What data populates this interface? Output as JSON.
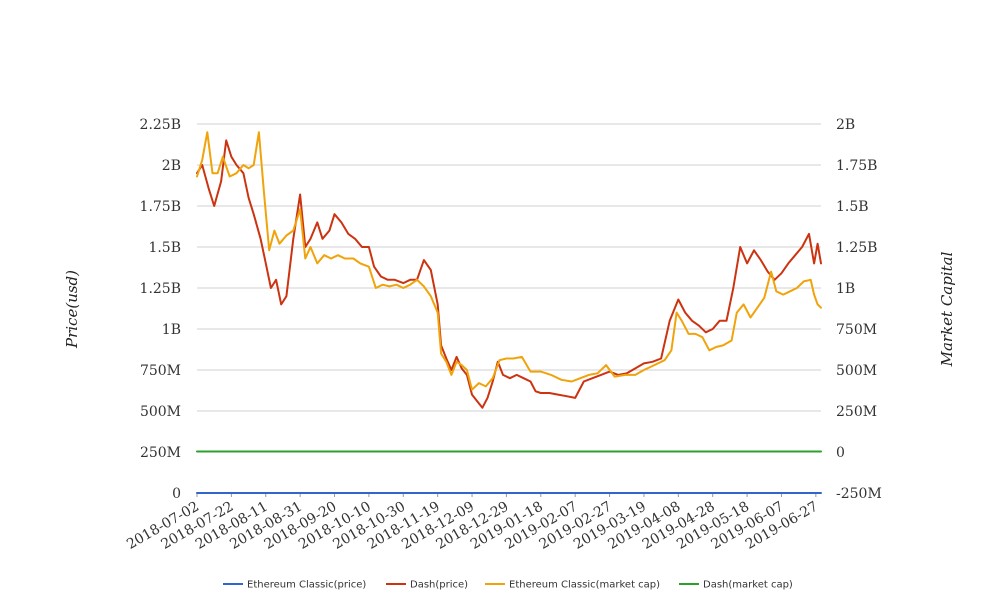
{
  "chart_data": {
    "type": "line",
    "title": "",
    "ylabel_left": "Price(usd)",
    "ylabel_right": "Market Capital",
    "grid": true,
    "legend_position": "bottom",
    "x_ticks": [
      "2018-07-02",
      "2018-07-22",
      "2018-08-11",
      "2018-08-31",
      "2018-09-20",
      "2018-10-10",
      "2018-10-30",
      "2018-11-19",
      "2018-12-09",
      "2018-12-29",
      "2019-01-18",
      "2019-02-07",
      "2019-02-27",
      "2019-03-19",
      "2019-04-08",
      "2019-04-28",
      "2019-05-18",
      "2019-06-07",
      "2019-06-27"
    ],
    "y_left": {
      "range": [
        0,
        2250000000
      ],
      "ticks": [
        0,
        250000000,
        500000000,
        750000000,
        1000000000,
        1250000000,
        1500000000,
        1750000000,
        2000000000,
        2250000000
      ],
      "tick_labels": [
        "0",
        "250M",
        "500M",
        "750M",
        "1B",
        "1.25B",
        "1.5B",
        "1.75B",
        "2B",
        "2.25B"
      ]
    },
    "y_right": {
      "range": [
        -250000000,
        2000000000
      ],
      "ticks": [
        -250000000,
        0,
        250000000,
        500000000,
        750000000,
        1000000000,
        1250000000,
        1500000000,
        1750000000,
        2000000000
      ],
      "tick_labels": [
        "-250M",
        "0",
        "250M",
        "500M",
        "750M",
        "1B",
        "1.25B",
        "1.5B",
        "1.75B",
        "2B"
      ]
    },
    "series": [
      {
        "name": "Ethereum Classic(price)",
        "axis": "left",
        "color": "#3366cc",
        "points": [
          [
            "2018-07-02",
            12
          ],
          [
            "2019-06-30",
            8
          ]
        ]
      },
      {
        "name": "Dash(price)",
        "axis": "left",
        "color": "#cc3311",
        "points": [
          [
            "2018-07-02",
            1950000000
          ],
          [
            "2018-07-05",
            2000000000
          ],
          [
            "2018-07-09",
            1850000000
          ],
          [
            "2018-07-12",
            1750000000
          ],
          [
            "2018-07-16",
            1900000000
          ],
          [
            "2018-07-19",
            2150000000
          ],
          [
            "2018-07-22",
            2050000000
          ],
          [
            "2018-07-25",
            2000000000
          ],
          [
            "2018-07-29",
            1950000000
          ],
          [
            "2018-08-01",
            1800000000
          ],
          [
            "2018-08-04",
            1700000000
          ],
          [
            "2018-08-08",
            1550000000
          ],
          [
            "2018-08-11",
            1400000000
          ],
          [
            "2018-08-14",
            1250000000
          ],
          [
            "2018-08-17",
            1300000000
          ],
          [
            "2018-08-20",
            1150000000
          ],
          [
            "2018-08-23",
            1200000000
          ],
          [
            "2018-08-27",
            1550000000
          ],
          [
            "2018-08-31",
            1820000000
          ],
          [
            "2018-09-03",
            1500000000
          ],
          [
            "2018-09-06",
            1550000000
          ],
          [
            "2018-09-10",
            1650000000
          ],
          [
            "2018-09-13",
            1550000000
          ],
          [
            "2018-09-17",
            1600000000
          ],
          [
            "2018-09-20",
            1700000000
          ],
          [
            "2018-09-24",
            1650000000
          ],
          [
            "2018-09-28",
            1580000000
          ],
          [
            "2018-10-02",
            1550000000
          ],
          [
            "2018-10-06",
            1500000000
          ],
          [
            "2018-10-10",
            1500000000
          ],
          [
            "2018-10-13",
            1380000000
          ],
          [
            "2018-10-17",
            1320000000
          ],
          [
            "2018-10-21",
            1300000000
          ],
          [
            "2018-10-25",
            1300000000
          ],
          [
            "2018-10-30",
            1280000000
          ],
          [
            "2018-11-03",
            1300000000
          ],
          [
            "2018-11-07",
            1300000000
          ],
          [
            "2018-11-11",
            1420000000
          ],
          [
            "2018-11-15",
            1360000000
          ],
          [
            "2018-11-19",
            1150000000
          ],
          [
            "2018-11-21",
            900000000
          ],
          [
            "2018-11-24",
            820000000
          ],
          [
            "2018-11-27",
            750000000
          ],
          [
            "2018-11-30",
            830000000
          ],
          [
            "2018-12-03",
            760000000
          ],
          [
            "2018-12-06",
            720000000
          ],
          [
            "2018-12-09",
            600000000
          ],
          [
            "2018-12-12",
            560000000
          ],
          [
            "2018-12-15",
            520000000
          ],
          [
            "2018-12-18",
            580000000
          ],
          [
            "2018-12-21",
            680000000
          ],
          [
            "2018-12-24",
            800000000
          ],
          [
            "2018-12-27",
            720000000
          ],
          [
            "2018-12-31",
            700000000
          ],
          [
            "2019-01-04",
            720000000
          ],
          [
            "2019-01-08",
            700000000
          ],
          [
            "2019-01-12",
            680000000
          ],
          [
            "2019-01-15",
            620000000
          ],
          [
            "2019-01-18",
            610000000
          ],
          [
            "2019-01-23",
            610000000
          ],
          [
            "2019-01-28",
            600000000
          ],
          [
            "2019-02-02",
            590000000
          ],
          [
            "2019-02-07",
            580000000
          ],
          [
            "2019-02-12",
            680000000
          ],
          [
            "2019-02-17",
            700000000
          ],
          [
            "2019-02-22",
            720000000
          ],
          [
            "2019-02-27",
            740000000
          ],
          [
            "2019-03-04",
            720000000
          ],
          [
            "2019-03-09",
            730000000
          ],
          [
            "2019-03-14",
            760000000
          ],
          [
            "2019-03-19",
            790000000
          ],
          [
            "2019-03-24",
            800000000
          ],
          [
            "2019-03-29",
            820000000
          ],
          [
            "2019-04-03",
            1050000000
          ],
          [
            "2019-04-08",
            1180000000
          ],
          [
            "2019-04-12",
            1100000000
          ],
          [
            "2019-04-16",
            1050000000
          ],
          [
            "2019-04-20",
            1020000000
          ],
          [
            "2019-04-24",
            980000000
          ],
          [
            "2019-04-28",
            1000000000
          ],
          [
            "2019-05-02",
            1050000000
          ],
          [
            "2019-05-06",
            1050000000
          ],
          [
            "2019-05-10",
            1250000000
          ],
          [
            "2019-05-14",
            1500000000
          ],
          [
            "2019-05-18",
            1400000000
          ],
          [
            "2019-05-22",
            1480000000
          ],
          [
            "2019-05-26",
            1420000000
          ],
          [
            "2019-05-30",
            1350000000
          ],
          [
            "2019-06-03",
            1300000000
          ],
          [
            "2019-06-07",
            1340000000
          ],
          [
            "2019-06-11",
            1400000000
          ],
          [
            "2019-06-15",
            1450000000
          ],
          [
            "2019-06-19",
            1500000000
          ],
          [
            "2019-06-23",
            1580000000
          ],
          [
            "2019-06-26",
            1400000000
          ],
          [
            "2019-06-28",
            1520000000
          ],
          [
            "2019-06-30",
            1400000000
          ]
        ]
      },
      {
        "name": "Ethereum Classic(market cap)",
        "axis": "right",
        "color": "#f0a30a",
        "points": [
          [
            "2018-07-02",
            1680000000
          ],
          [
            "2018-07-05",
            1780000000
          ],
          [
            "2018-07-08",
            1950000000
          ],
          [
            "2018-07-11",
            1700000000
          ],
          [
            "2018-07-14",
            1700000000
          ],
          [
            "2018-07-17",
            1800000000
          ],
          [
            "2018-07-21",
            1680000000
          ],
          [
            "2018-07-25",
            1700000000
          ],
          [
            "2018-07-29",
            1750000000
          ],
          [
            "2018-08-01",
            1730000000
          ],
          [
            "2018-08-04",
            1750000000
          ],
          [
            "2018-08-07",
            1950000000
          ],
          [
            "2018-08-10",
            1580000000
          ],
          [
            "2018-08-13",
            1230000000
          ],
          [
            "2018-08-16",
            1350000000
          ],
          [
            "2018-08-19",
            1270000000
          ],
          [
            "2018-08-23",
            1320000000
          ],
          [
            "2018-08-27",
            1350000000
          ],
          [
            "2018-08-31",
            1480000000
          ],
          [
            "2018-09-03",
            1180000000
          ],
          [
            "2018-09-06",
            1250000000
          ],
          [
            "2018-09-10",
            1150000000
          ],
          [
            "2018-09-14",
            1200000000
          ],
          [
            "2018-09-18",
            1180000000
          ],
          [
            "2018-09-22",
            1200000000
          ],
          [
            "2018-09-26",
            1180000000
          ],
          [
            "2018-10-01",
            1180000000
          ],
          [
            "2018-10-05",
            1150000000
          ],
          [
            "2018-10-10",
            1130000000
          ],
          [
            "2018-10-14",
            1000000000
          ],
          [
            "2018-10-18",
            1020000000
          ],
          [
            "2018-10-22",
            1010000000
          ],
          [
            "2018-10-26",
            1020000000
          ],
          [
            "2018-10-30",
            1000000000
          ],
          [
            "2018-11-03",
            1020000000
          ],
          [
            "2018-11-07",
            1050000000
          ],
          [
            "2018-11-11",
            1010000000
          ],
          [
            "2018-11-15",
            950000000
          ],
          [
            "2018-11-19",
            850000000
          ],
          [
            "2018-11-21",
            600000000
          ],
          [
            "2018-11-24",
            550000000
          ],
          [
            "2018-11-27",
            470000000
          ],
          [
            "2018-11-30",
            550000000
          ],
          [
            "2018-12-03",
            530000000
          ],
          [
            "2018-12-06",
            500000000
          ],
          [
            "2018-12-09",
            380000000
          ],
          [
            "2018-12-13",
            420000000
          ],
          [
            "2018-12-17",
            400000000
          ],
          [
            "2018-12-21",
            450000000
          ],
          [
            "2018-12-25",
            560000000
          ],
          [
            "2018-12-29",
            570000000
          ],
          [
            "2019-01-02",
            570000000
          ],
          [
            "2019-01-07",
            580000000
          ],
          [
            "2019-01-12",
            490000000
          ],
          [
            "2019-01-18",
            490000000
          ],
          [
            "2019-01-24",
            470000000
          ],
          [
            "2019-01-30",
            440000000
          ],
          [
            "2019-02-05",
            430000000
          ],
          [
            "2019-02-10",
            450000000
          ],
          [
            "2019-02-15",
            470000000
          ],
          [
            "2019-02-20",
            480000000
          ],
          [
            "2019-02-25",
            530000000
          ],
          [
            "2019-03-02",
            460000000
          ],
          [
            "2019-03-08",
            470000000
          ],
          [
            "2019-03-14",
            470000000
          ],
          [
            "2019-03-19",
            500000000
          ],
          [
            "2019-03-25",
            530000000
          ],
          [
            "2019-03-31",
            560000000
          ],
          [
            "2019-04-04",
            620000000
          ],
          [
            "2019-04-07",
            850000000
          ],
          [
            "2019-04-10",
            800000000
          ],
          [
            "2019-04-14",
            720000000
          ],
          [
            "2019-04-18",
            720000000
          ],
          [
            "2019-04-22",
            700000000
          ],
          [
            "2019-04-26",
            620000000
          ],
          [
            "2019-04-30",
            640000000
          ],
          [
            "2019-05-04",
            650000000
          ],
          [
            "2019-05-09",
            680000000
          ],
          [
            "2019-05-12",
            850000000
          ],
          [
            "2019-05-16",
            900000000
          ],
          [
            "2019-05-20",
            820000000
          ],
          [
            "2019-05-24",
            880000000
          ],
          [
            "2019-05-28",
            940000000
          ],
          [
            "2019-06-01",
            1100000000
          ],
          [
            "2019-06-04",
            980000000
          ],
          [
            "2019-06-08",
            960000000
          ],
          [
            "2019-06-12",
            980000000
          ],
          [
            "2019-06-16",
            1000000000
          ],
          [
            "2019-06-20",
            1040000000
          ],
          [
            "2019-06-24",
            1050000000
          ],
          [
            "2019-06-26",
            960000000
          ],
          [
            "2019-06-28",
            900000000
          ],
          [
            "2019-06-30",
            880000000
          ]
        ]
      },
      {
        "name": "Dash(market cap)",
        "axis": "right",
        "color": "#2ca02c",
        "points": [
          [
            "2018-07-02",
            3000000
          ],
          [
            "2019-06-30",
            3000000
          ]
        ]
      }
    ]
  }
}
